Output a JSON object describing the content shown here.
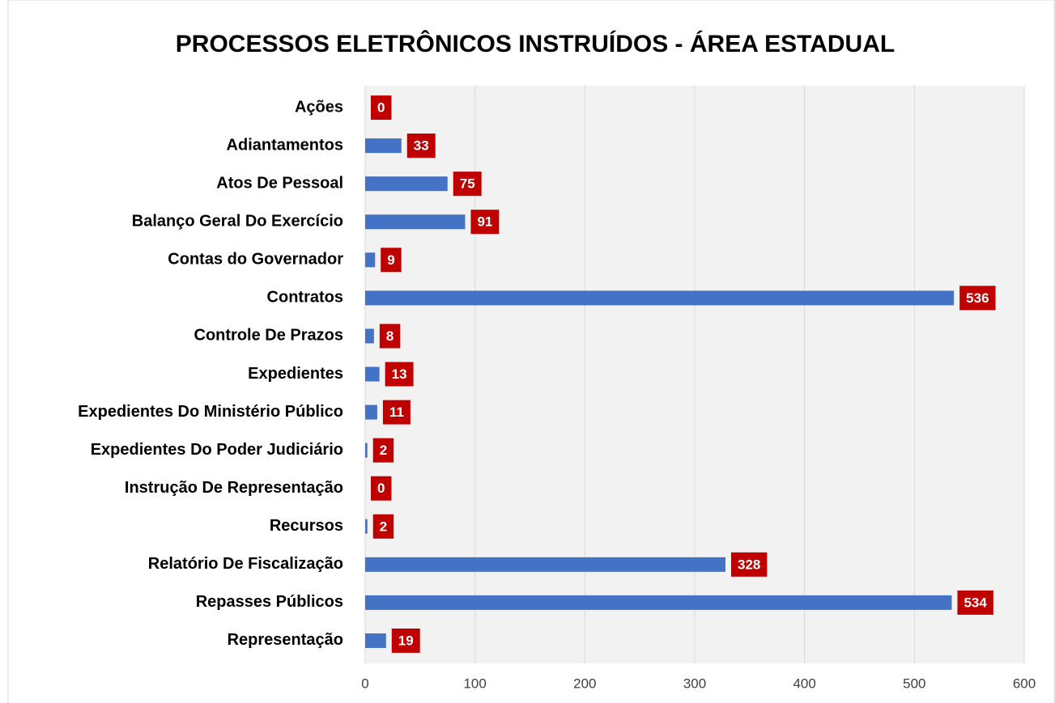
{
  "chart_data": {
    "type": "barh",
    "title": "PROCESSOS ELETRÔNICOS INSTRUÍDOS - ÁREA ESTADUAL",
    "categories": [
      "Ações",
      "Adiantamentos",
      "Atos De Pessoal",
      "Balanço Geral Do Exercício",
      "Contas do Governador",
      "Contratos",
      "Controle De Prazos",
      "Expedientes",
      "Expedientes Do Ministério Público",
      "Expedientes Do Poder Judiciário",
      "Instrução De Representação",
      "Recursos",
      "Relatório De Fiscalização",
      "Repasses Públicos",
      "Representação"
    ],
    "values": [
      0,
      33,
      75,
      91,
      9,
      536,
      8,
      13,
      11,
      2,
      0,
      2,
      328,
      534,
      19
    ],
    "color": "#4472c4",
    "label_color": "#c00000",
    "xlim": [
      0,
      600
    ],
    "xticks": [
      0,
      100,
      200,
      300,
      400,
      500,
      600
    ],
    "grid": true
  }
}
